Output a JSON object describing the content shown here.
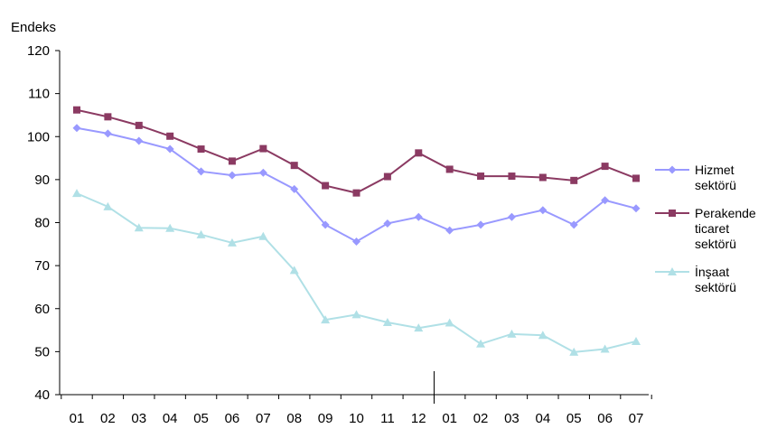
{
  "chart_data": {
    "type": "line",
    "title": "",
    "xlabel": "",
    "ylabel": "Endeks",
    "ylim": [
      40,
      120
    ],
    "yticks": [
      40,
      50,
      60,
      70,
      80,
      90,
      100,
      110,
      120
    ],
    "categories": [
      "01",
      "02",
      "03",
      "04",
      "05",
      "06",
      "07",
      "08",
      "09",
      "10",
      "11",
      "12",
      "01",
      "02",
      "03",
      "04",
      "05",
      "06",
      "07"
    ],
    "grid": false,
    "legend_position": "right",
    "series": [
      {
        "name": "Hizmet\nsektörü",
        "color": "#9999ff",
        "marker": "diamond",
        "values": [
          102,
          100.7,
          99,
          97.1,
          91.9,
          91,
          91.6,
          87.8,
          79.5,
          75.6,
          79.8,
          81.3,
          78.2,
          79.5,
          81.3,
          82.9,
          79.5,
          85.2,
          83.3
        ]
      },
      {
        "name": "Perakende\nticaret\nsektörü",
        "color": "#8b3a62",
        "marker": "square",
        "values": [
          106.2,
          104.6,
          102.6,
          100.1,
          97.1,
          94.3,
          97.2,
          93.3,
          88.6,
          86.9,
          90.7,
          96.2,
          92.4,
          90.8,
          90.8,
          90.5,
          89.8,
          93.1,
          90.3
        ]
      },
      {
        "name": "İnşaat\nsektörü",
        "color": "#b0e0e6",
        "marker": "triangle",
        "values": [
          86.8,
          83.7,
          78.8,
          78.7,
          77.2,
          75.3,
          76.8,
          68.9,
          57.4,
          58.6,
          56.8,
          55.5,
          56.7,
          51.8,
          54.1,
          53.8,
          49.9,
          50.6,
          52.4
        ]
      }
    ]
  }
}
